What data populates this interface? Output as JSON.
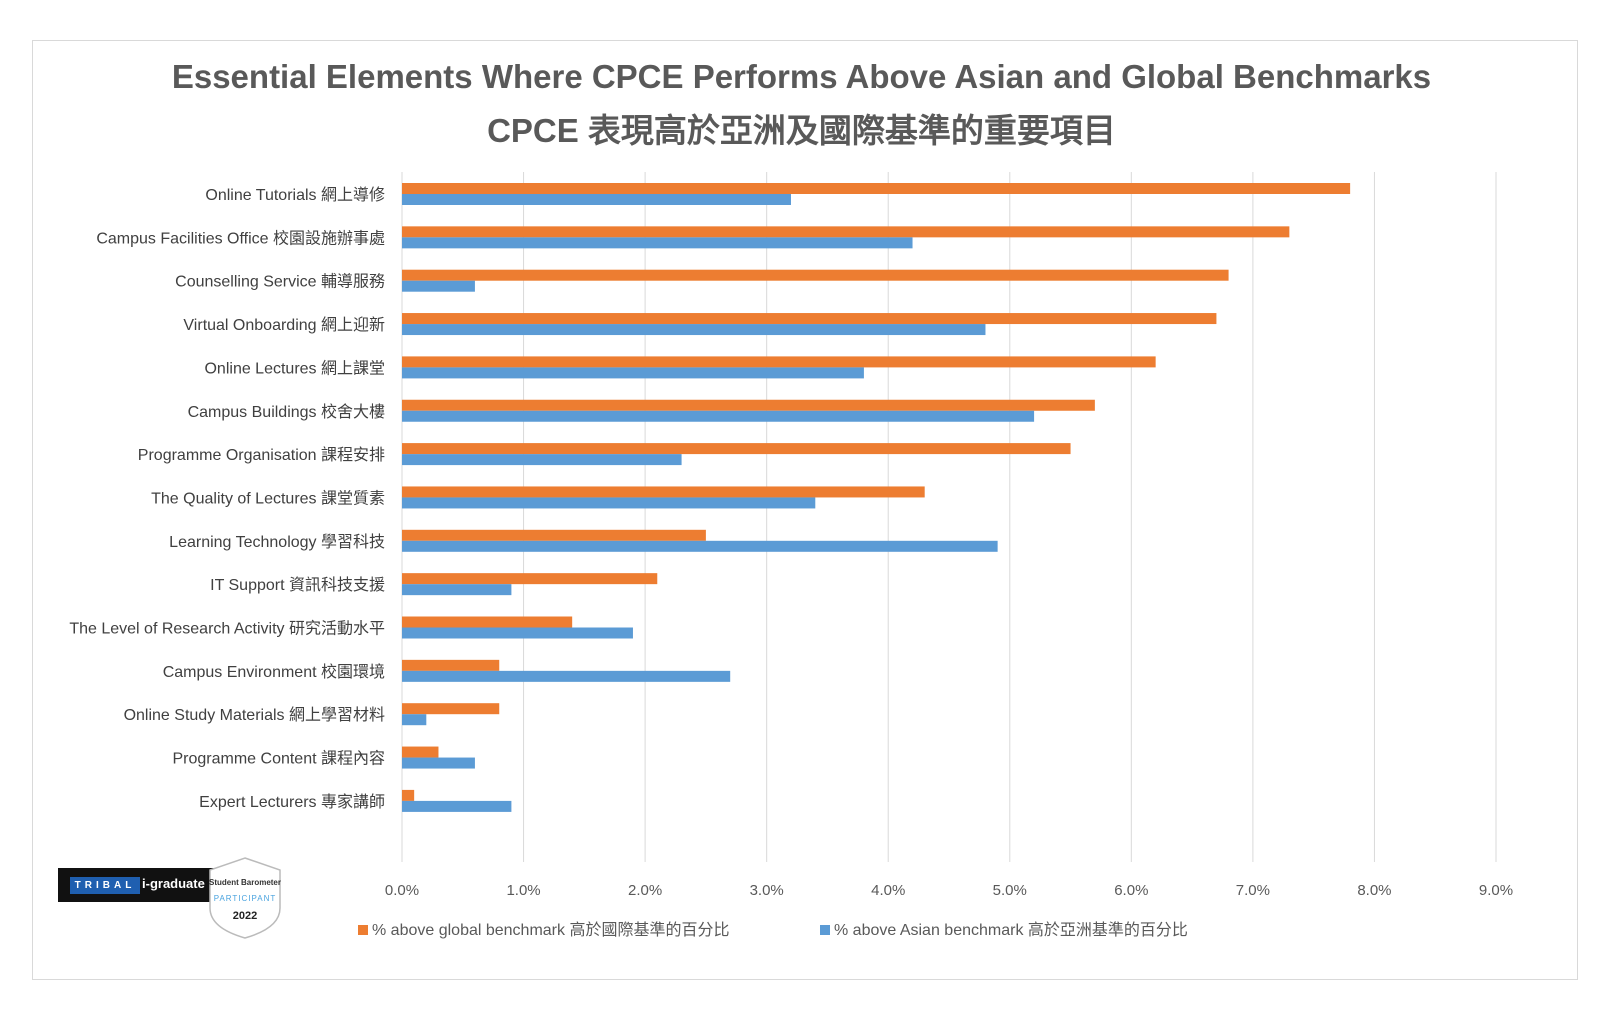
{
  "title_line1": "Essential Elements Where CPCE Performs Above Asian and Global Benchmarks",
  "title_line2": "CPCE 表現高於亞洲及國際基準的重要項目",
  "chart_data": {
    "type": "bar",
    "orientation": "horizontal",
    "title": "Essential Elements Where CPCE Performs Above Asian and Global Benchmarks",
    "subtitle": "CPCE 表現高於亞洲及國際基準的重要項目",
    "categories": [
      "Online Tutorials 網上導修",
      "Campus Facilities Office 校園設施辦事處",
      "Counselling Service 輔導服務",
      "Virtual Onboarding 網上迎新",
      "Online Lectures 網上課堂",
      "Campus Buildings 校舍大樓",
      "Programme Organisation 課程安排",
      "The Quality of Lectures 課堂質素",
      "Learning Technology 學習科技",
      "IT Support 資訊科技支援",
      "The Level of Research Activity  研究活動水平",
      "Campus Environment  校園環境",
      "Online Study Materials 網上學習材料",
      "Programme Content 課程內容",
      "Expert Lecturers 專家講師"
    ],
    "series": [
      {
        "name": "% above global benchmark 高於國際基準的百分比",
        "color": "#ed7d31",
        "values": [
          7.8,
          7.3,
          6.8,
          6.7,
          6.2,
          5.7,
          5.5,
          4.3,
          2.5,
          2.1,
          1.4,
          0.8,
          0.8,
          0.3,
          0.1
        ]
      },
      {
        "name": "% above Asian benchmark 高於亞洲基準的百分比",
        "color": "#5b9bd5",
        "values": [
          3.2,
          4.2,
          0.6,
          4.8,
          3.8,
          5.2,
          2.3,
          3.4,
          4.9,
          0.9,
          1.9,
          2.7,
          0.2,
          0.6,
          0.9
        ]
      }
    ],
    "xlim": [
      0,
      9
    ],
    "xticks": [
      "0.0%",
      "1.0%",
      "2.0%",
      "3.0%",
      "4.0%",
      "5.0%",
      "6.0%",
      "7.0%",
      "8.0%",
      "9.0%"
    ],
    "xlabel": "",
    "ylabel": "",
    "grid": "vertical",
    "legend_position": "bottom"
  },
  "logo": {
    "brand": "TRIBAL",
    "product": "i-graduate",
    "badge_line1": "Student Barometer",
    "badge_line2": "PARTICIPANT",
    "badge_year": "2022"
  }
}
